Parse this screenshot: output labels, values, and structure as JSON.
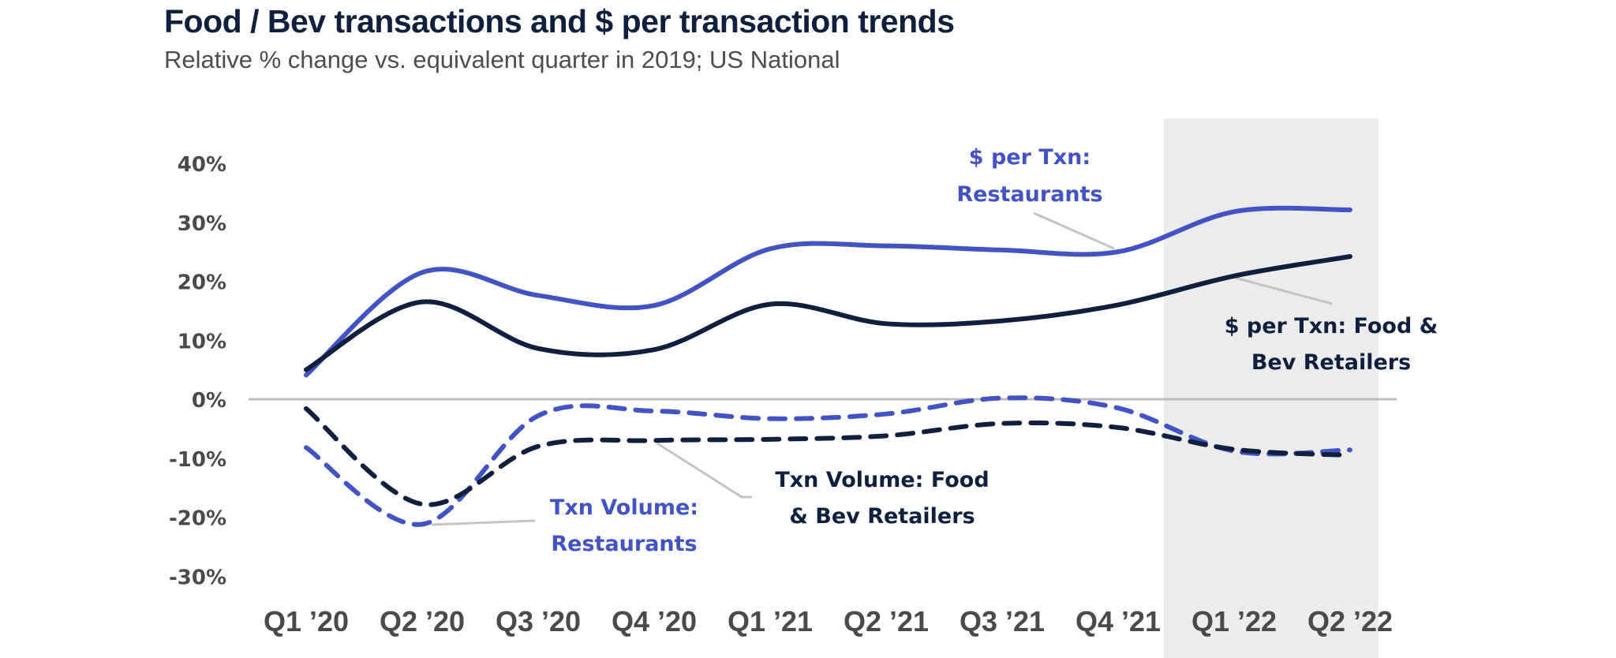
{
  "header": {
    "title": "Food / Bev transactions and $ per transaction trends",
    "subtitle": "Relative % change vs. equivalent quarter in 2019; US National"
  },
  "chart_data": {
    "type": "line",
    "title": "Food / Bev transactions and $ per transaction trends",
    "subtitle": "Relative % change vs. equivalent quarter in 2019; US National",
    "xlabel": "",
    "ylabel": "",
    "categories": [
      "Q1 ’20",
      "Q2 ’20",
      "Q3 ’20",
      "Q4 ’20",
      "Q1 ’21",
      "Q2 ’21",
      "Q3 ’21",
      "Q4 ’21",
      "Q1 ’22",
      "Q2 ’22"
    ],
    "yticks": [
      40,
      30,
      20,
      10,
      0,
      -10,
      -20,
      -30
    ],
    "ytick_labels": [
      "40%",
      "30%",
      "20%",
      "10%",
      "0%",
      "-10%",
      "-20%",
      "-30%"
    ],
    "ylim": [
      -30,
      40
    ],
    "grid": false,
    "zero_line": true,
    "highlight_band": {
      "from": "Q1 ’22",
      "to": "Q2 ’22",
      "color": "#ececec"
    },
    "series": [
      {
        "name": "$ per Txn: Restaurants",
        "color": "#4453c4",
        "dash": false,
        "values": [
          4.1,
          21.5,
          17.6,
          15.9,
          25.5,
          26.0,
          25.3,
          25.0,
          31.8,
          32.1
        ]
      },
      {
        "name": "$ per Txn: Food & Bev Retailers",
        "color": "#0f1f3d",
        "dash": false,
        "values": [
          5.0,
          16.5,
          8.6,
          8.4,
          16.1,
          12.8,
          13.3,
          16.0,
          20.9,
          24.2
        ]
      },
      {
        "name": "Txn Volume: Restaurants",
        "color": "#4453c4",
        "dash": true,
        "values": [
          -8.2,
          -21.2,
          -2.8,
          -2.0,
          -3.3,
          -2.5,
          0.2,
          -1.5,
          -8.8,
          -8.6
        ]
      },
      {
        "name": "Txn Volume: Food & Bev Retailers",
        "color": "#0f1f3d",
        "dash": true,
        "values": [
          -1.6,
          -17.8,
          -8.0,
          -7.0,
          -6.8,
          -6.2,
          -4.1,
          -4.8,
          -8.5,
          -9.5
        ]
      }
    ],
    "annotations": [
      {
        "series": 0,
        "lines": [
          "$ per Txn:",
          "Restaurants"
        ],
        "color": "#4453c4"
      },
      {
        "series": 1,
        "lines": [
          "$ per Txn: Food &",
          "Bev Retailers"
        ],
        "color": "#0f1f3d"
      },
      {
        "series": 2,
        "lines": [
          "Txn Volume:",
          "Restaurants"
        ],
        "color": "#4453c4"
      },
      {
        "series": 3,
        "lines": [
          "Txn Volume: Food",
          "& Bev Retailers"
        ],
        "color": "#0f1f3d"
      }
    ]
  }
}
